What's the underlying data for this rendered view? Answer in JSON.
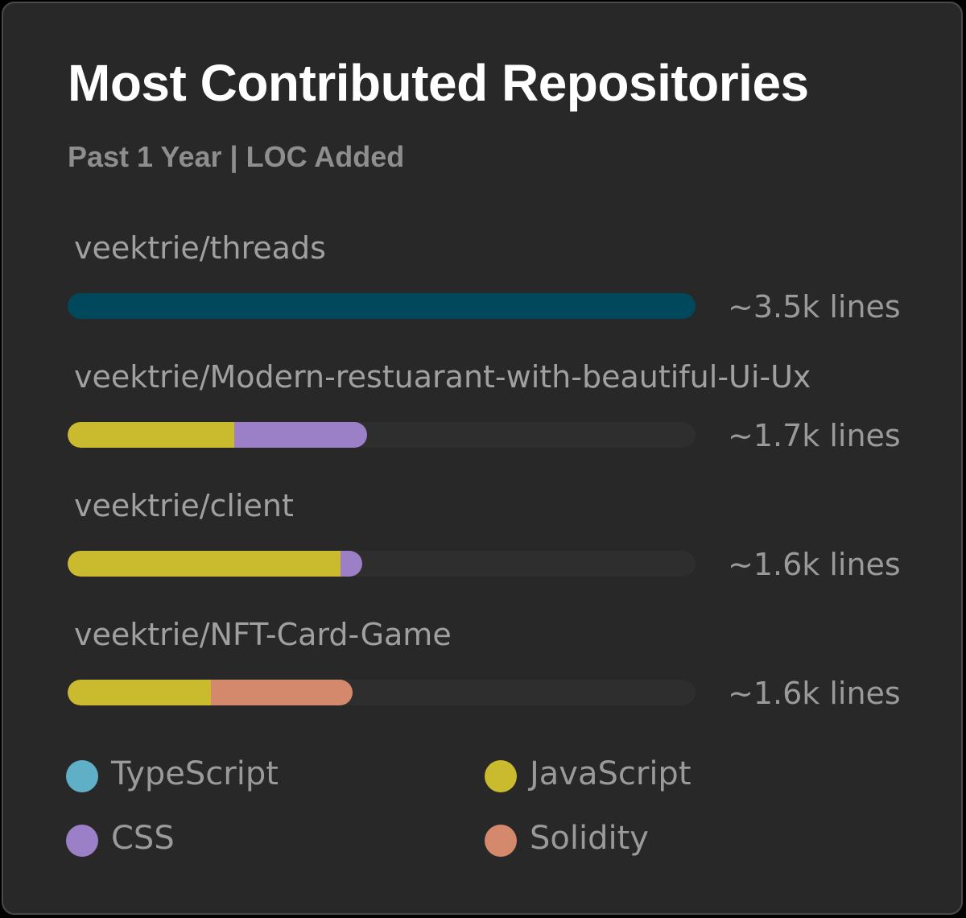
{
  "header": {
    "title": "Most Contributed Repositories",
    "subtitle": "Past 1 Year | LOC Added"
  },
  "colors": {
    "TypeScript": "#5fb0c6",
    "TypeScriptBar": "#01485d",
    "JavaScript": "#c9ba2e",
    "CSS": "#9b80c7",
    "Solidity": "#d4896c",
    "track": "#2e2e2e"
  },
  "chart_data": {
    "type": "bar",
    "orientation": "horizontal-stacked",
    "title": "Most Contributed Repositories",
    "subtitle": "Past 1 Year | LOC Added",
    "unit": "lines",
    "max": 3500,
    "categories": [
      "veektrie/threads",
      "veektrie/Modern-restuarant-with-beautiful-Ui-Ux",
      "veektrie/client",
      "veektrie/NFT-Card-Game"
    ],
    "value_labels": [
      "~3.5k lines",
      "~1.7k lines",
      "~1.6k lines",
      "~1.6k lines"
    ],
    "series": [
      {
        "name": "TypeScript",
        "values": [
          3500,
          0,
          0,
          0
        ]
      },
      {
        "name": "JavaScript",
        "values": [
          0,
          930,
          1520,
          800
        ]
      },
      {
        "name": "CSS",
        "values": [
          0,
          740,
          120,
          0
        ]
      },
      {
        "name": "Solidity",
        "values": [
          0,
          0,
          0,
          790
        ]
      }
    ]
  },
  "legend": [
    {
      "label": "TypeScript"
    },
    {
      "label": "JavaScript"
    },
    {
      "label": "CSS"
    },
    {
      "label": "Solidity"
    }
  ]
}
